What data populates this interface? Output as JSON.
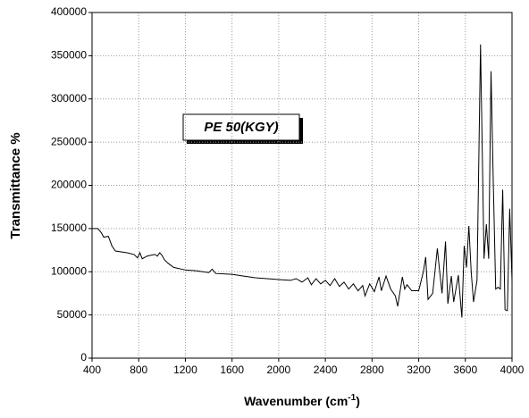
{
  "chart_data": {
    "type": "line",
    "x_label_parts": [
      "Wavenumber (cm",
      "-1",
      ")"
    ],
    "y_label": "Transmittance %",
    "annotation": "PE 50(KGY)",
    "color": "#000000",
    "grid": true,
    "xlim": [
      400,
      4000
    ],
    "xticks": [
      400,
      800,
      1200,
      1600,
      2000,
      2400,
      2800,
      3200,
      3600,
      4000
    ],
    "ylim": [
      0,
      400000
    ],
    "yticks": [
      0,
      50000,
      100000,
      150000,
      200000,
      250000,
      300000,
      350000,
      400000
    ],
    "x": [
      400,
      450,
      480,
      500,
      540,
      570,
      600,
      700,
      760,
      790,
      810,
      830,
      870,
      900,
      940,
      960,
      980,
      1000,
      1020,
      1050,
      1100,
      1200,
      1300,
      1400,
      1430,
      1460,
      1600,
      1700,
      1800,
      1900,
      2000,
      2100,
      2150,
      2200,
      2250,
      2280,
      2320,
      2360,
      2400,
      2440,
      2480,
      2520,
      2560,
      2600,
      2640,
      2680,
      2720,
      2740,
      2780,
      2820,
      2860,
      2880,
      2920,
      2960,
      3000,
      3020,
      3060,
      3080,
      3100,
      3140,
      3200,
      3240,
      3260,
      3280,
      3320,
      3360,
      3380,
      3400,
      3430,
      3450,
      3480,
      3500,
      3540,
      3570,
      3590,
      3610,
      3630,
      3650,
      3670,
      3700,
      3730,
      3760,
      3780,
      3800,
      3820,
      3840,
      3860,
      3880,
      3900,
      3920,
      3940,
      3960,
      3980,
      4000
    ],
    "values": [
      150000,
      150000,
      145000,
      140000,
      141000,
      130000,
      124000,
      122000,
      120000,
      116000,
      122000,
      115000,
      118000,
      119000,
      120000,
      118000,
      122000,
      119000,
      114000,
      110000,
      105000,
      102000,
      101000,
      99000,
      103000,
      98000,
      97000,
      95000,
      93000,
      92000,
      91000,
      90000,
      92000,
      88000,
      93000,
      85000,
      92000,
      86000,
      90000,
      84000,
      92000,
      83000,
      88000,
      80000,
      86000,
      78000,
      84000,
      72000,
      86000,
      77000,
      94000,
      78000,
      95000,
      80000,
      72000,
      60000,
      94000,
      80000,
      85000,
      78000,
      78000,
      100000,
      117000,
      68000,
      75000,
      127000,
      100000,
      75000,
      135000,
      63000,
      95000,
      65000,
      96000,
      47000,
      130000,
      105000,
      153000,
      100000,
      65000,
      90000,
      363000,
      115000,
      155000,
      115000,
      332000,
      200000,
      80000,
      82000,
      80000,
      195000,
      56000,
      55000,
      173000,
      90000
    ]
  }
}
